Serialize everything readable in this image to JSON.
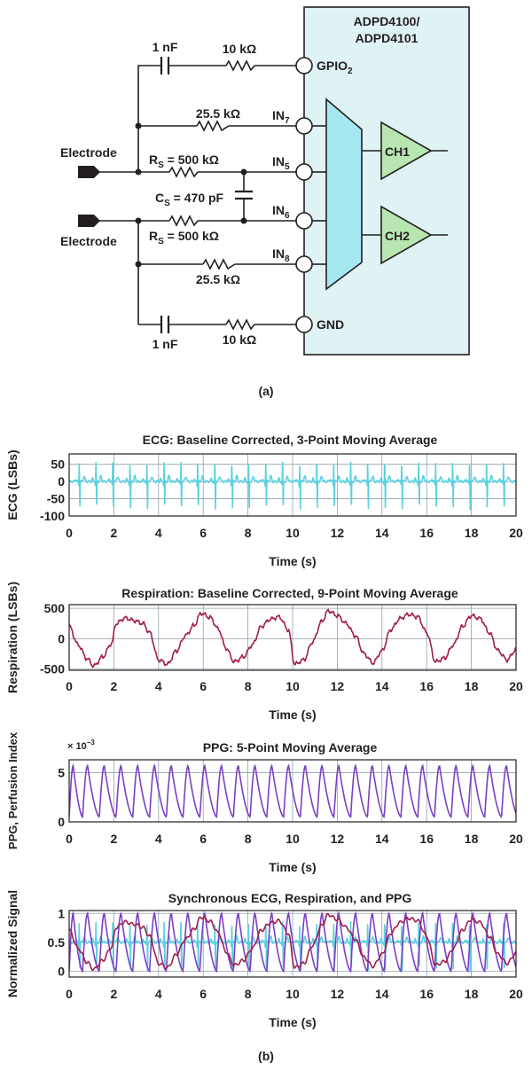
{
  "circuit": {
    "chip_label_line1": "ADPD4100/",
    "chip_label_line2": "ADPD4101",
    "pins": {
      "gpio_main": "GPIO",
      "gpio_sub": "2",
      "in7_main": "IN",
      "in7_sub": "7",
      "in5_main": "IN",
      "in5_sub": "5",
      "in6_main": "IN",
      "in6_sub": "6",
      "in8_main": "IN",
      "in8_sub": "8",
      "gnd": "GND"
    },
    "channels": {
      "ch1": "CH1",
      "ch2": "CH2"
    },
    "electrode_top": "Electrode",
    "electrode_bottom": "Electrode",
    "components": {
      "cap_top": "1 nF",
      "res_top": "10 kΩ",
      "res_in7": "25.5 kΩ",
      "rs_top_main": "R",
      "rs_top_sub": "S",
      "rs_top_value": " = 500 kΩ",
      "cs_main": "C",
      "cs_sub": "S",
      "cs_value": " = 470 pF",
      "rs_bot_main": "R",
      "rs_bot_sub": "S",
      "rs_bot_value": " = 500 kΩ",
      "res_in8": "25.5 kΩ",
      "cap_bot": "1 nF",
      "res_bot": "10 kΩ"
    },
    "caption": "(a)"
  },
  "caption_b": "(b)",
  "colors": {
    "chip_fill": "#dff2f4",
    "mux_fill": "#a6e8f0",
    "amp_fill": "#b8e6b0",
    "ecg": "#5ad1e0",
    "resp": "#a01e4a",
    "ppg": "#7b3fc4",
    "grid": "#8fa0b0",
    "ink": "#231f20"
  },
  "chart_data": [
    {
      "type": "line",
      "title": "ECG: Baseline Corrected, 3-Point Moving Average",
      "xlabel": "Time (s)",
      "ylabel": "ECG (LSBs)",
      "xlim": [
        0,
        20
      ],
      "ylim": [
        -100,
        80
      ],
      "xticks": [
        0,
        2,
        4,
        6,
        8,
        10,
        12,
        14,
        16,
        18,
        20
      ],
      "yticks": [
        50,
        0,
        -50,
        -100
      ],
      "grid": true,
      "series": [
        {
          "color": "#5ad1e0",
          "waveform": "ecg",
          "beat_times": [
            0.45,
            1.2,
            1.95,
            2.72,
            3.48,
            4.25,
            5.0,
            5.75,
            6.52,
            7.28,
            8.03,
            8.8,
            9.55,
            10.32,
            11.08,
            11.84,
            12.6,
            13.36,
            14.12,
            14.88,
            15.64,
            16.4,
            17.16,
            17.92,
            18.68,
            19.44
          ],
          "r_peak": 55,
          "s_trough": -80
        }
      ]
    },
    {
      "type": "line",
      "title": "Respiration: Baseline Corrected, 9-Point Moving Average",
      "xlabel": "Time (s)",
      "ylabel": "Respiration (LSBs)",
      "xlim": [
        0,
        20
      ],
      "ylim": [
        -520,
        560
      ],
      "xticks": [
        0,
        2,
        4,
        6,
        8,
        10,
        12,
        14,
        16,
        18,
        20
      ],
      "yticks": [
        500,
        0,
        -500
      ],
      "grid": true,
      "series": [
        {
          "color": "#a01e4a",
          "x": [
            0,
            0.4,
            0.8,
            1.1,
            1.5,
            1.9,
            2.1,
            2.5,
            2.9,
            3.3,
            3.6,
            4.0,
            4.4,
            4.8,
            5.2,
            5.6,
            5.9,
            6.3,
            6.7,
            7.0,
            7.4,
            7.8,
            8.2,
            8.6,
            9.0,
            9.4,
            9.8,
            10.1,
            10.5,
            10.9,
            11.3,
            11.6,
            12.0,
            12.4,
            12.8,
            13.2,
            13.6,
            14.0,
            14.4,
            14.8,
            15.2,
            15.6,
            16.0,
            16.4,
            16.8,
            17.2,
            17.6,
            18.0,
            18.4,
            18.8,
            19.2,
            19.6,
            20.0
          ],
          "y": [
            200,
            -100,
            -330,
            -450,
            -300,
            -80,
            250,
            340,
            300,
            250,
            100,
            -350,
            -420,
            -200,
            50,
            220,
            420,
            350,
            150,
            -150,
            -380,
            -300,
            -100,
            200,
            320,
            360,
            150,
            -420,
            -350,
            -50,
            280,
            460,
            380,
            250,
            50,
            -250,
            -400,
            -200,
            150,
            330,
            400,
            360,
            100,
            -380,
            -320,
            -100,
            200,
            380,
            330,
            100,
            -200,
            -350,
            -180
          ]
        }
      ]
    },
    {
      "type": "line",
      "title": "PPG: 5-Point Moving Average",
      "xlabel": "Time (s)",
      "ylabel": "PPG, Perfusion Index",
      "multiplier": "× 10",
      "multiplier_exp": "−3",
      "xlim": [
        0,
        20
      ],
      "ylim": [
        0,
        6.3
      ],
      "xticks": [
        0,
        2,
        4,
        6,
        8,
        10,
        12,
        14,
        16,
        18,
        20
      ],
      "yticks": [
        5,
        0
      ],
      "grid": true,
      "series": [
        {
          "color": "#7b3fc4",
          "waveform": "ppg",
          "beat_times": [
            0.0,
            0.6,
            1.35,
            2.1,
            2.85,
            3.6,
            4.35,
            5.1,
            5.85,
            6.6,
            7.35,
            8.1,
            8.85,
            9.6,
            10.35,
            11.1,
            11.85,
            12.6,
            13.35,
            14.1,
            14.85,
            15.6,
            16.35,
            17.1,
            17.85,
            18.6,
            19.35
          ],
          "peak": 5.7,
          "trough": 0.5
        }
      ]
    },
    {
      "type": "line",
      "title": "Synchronous ECG, Respiration, and PPG",
      "xlabel": "Time (s)",
      "ylabel": "Normalized Signal",
      "xlim": [
        0,
        20
      ],
      "ylim": [
        -0.1,
        1.05
      ],
      "xticks": [
        0,
        2,
        4,
        6,
        8,
        10,
        12,
        14,
        16,
        18,
        20
      ],
      "yticks": [
        1,
        0.5,
        0
      ],
      "grid": true,
      "series": [
        {
          "color": "#5ad1e0",
          "waveform": "ecg_normalized"
        },
        {
          "color": "#7b3fc4",
          "waveform": "ppg_normalized"
        },
        {
          "color": "#a01e4a",
          "waveform": "resp_normalized"
        }
      ]
    }
  ]
}
